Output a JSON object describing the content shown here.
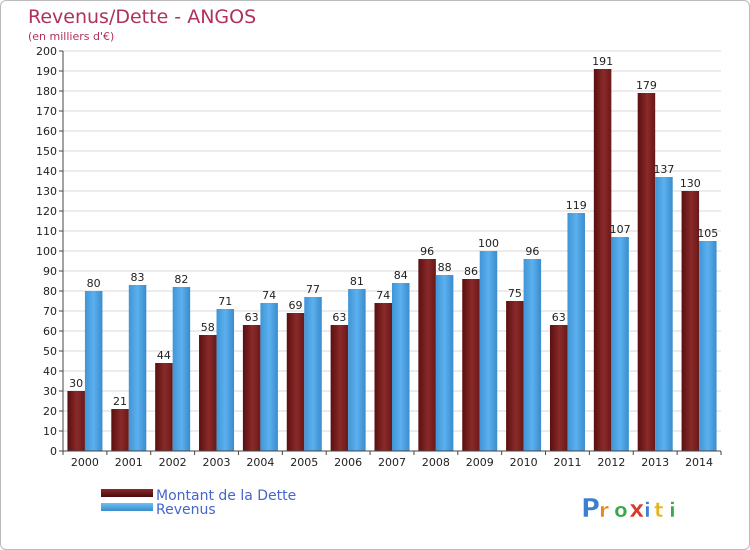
{
  "chart_data": {
    "type": "bar",
    "title": "Revenus/Dette - ANGOS",
    "subtitle": "(en milliers d'€)",
    "categories": [
      "2000",
      "2001",
      "2002",
      "2003",
      "2004",
      "2005",
      "2006",
      "2007",
      "2008",
      "2009",
      "2010",
      "2011",
      "2012",
      "2013",
      "2014"
    ],
    "series": [
      {
        "name": "Montant de la Dette",
        "color": "#7a1f1f",
        "values": [
          30,
          21,
          44,
          58,
          63,
          69,
          63,
          74,
          96,
          86,
          75,
          63,
          191,
          179,
          130
        ]
      },
      {
        "name": "Revenus",
        "color": "#4ea6e6",
        "values": [
          80,
          83,
          82,
          71,
          74,
          77,
          81,
          84,
          88,
          100,
          96,
          119,
          107,
          137,
          105
        ]
      }
    ],
    "ylim": [
      0,
      200
    ],
    "ytick_step": 10,
    "grid": true,
    "legend_position": "bottom-left"
  },
  "watermark": {
    "text": "Proxiti"
  }
}
